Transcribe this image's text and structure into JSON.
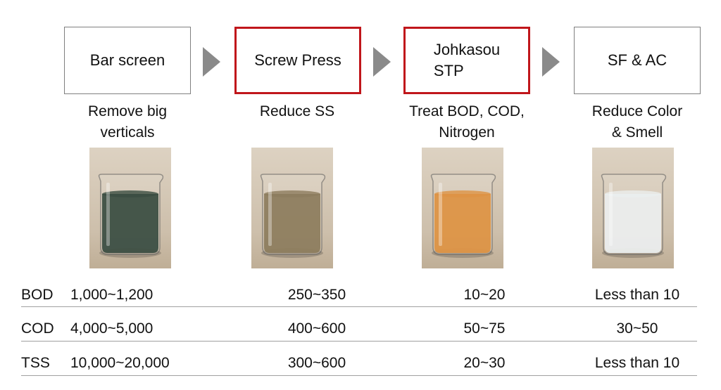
{
  "stages": [
    {
      "title": "Bar screen",
      "description": "Remove big\nverticals",
      "highlight": false,
      "liquid_color": "#1f3528"
    },
    {
      "title": "Screw Press",
      "description": "Reduce SS",
      "highlight": true,
      "liquid_color": "#7d6a47"
    },
    {
      "title": "Johkasou\nSTP",
      "description": "Treat BOD, COD,\nNitrogen",
      "highlight": true,
      "liquid_color": "#d9842a"
    },
    {
      "title": "SF & AC",
      "description": "Reduce Color\n& Smell",
      "highlight": false,
      "liquid_color": "#e8ecec"
    }
  ],
  "table": {
    "rows": [
      {
        "label": "BOD",
        "values": [
          "1,000~1,200",
          "250~350",
          "10~20",
          "Less than 10"
        ]
      },
      {
        "label": "COD",
        "values": [
          "4,000~5,000",
          "400~600",
          "50~75",
          "30~50"
        ]
      },
      {
        "label": "TSS",
        "values": [
          "10,000~20,000",
          "300~600",
          "20~30",
          "Less than 10"
        ]
      }
    ]
  },
  "colors": {
    "highlight_border": "#c0161b",
    "box_border": "#7f7f7f",
    "arrow": "#8a8a8a"
  }
}
